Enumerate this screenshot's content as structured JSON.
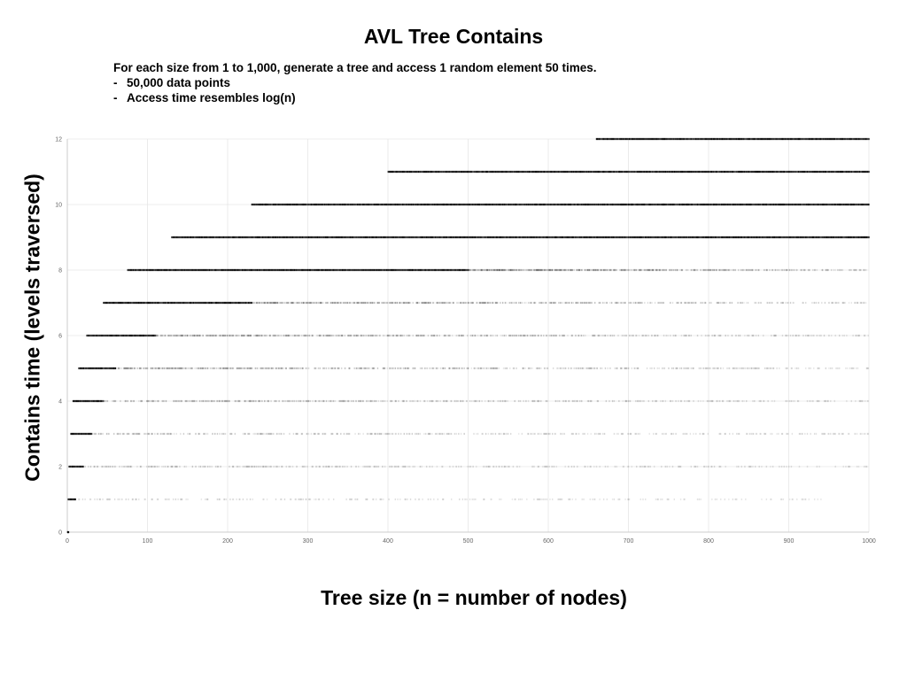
{
  "chart_data": {
    "type": "scatter",
    "title": "AVL Tree Contains",
    "subtitle": "For each size from 1 to 1,000, generate a tree and access 1 random element 50 times.",
    "notes": [
      "50,000 data points",
      "Access time resembles log(n)"
    ],
    "bullet": "-",
    "xlabel": "Tree size (n = number of nodes)",
    "ylabel": "Contains time (levels traversed)",
    "xlim": [
      0,
      1000
    ],
    "ylim": [
      0,
      12
    ],
    "x_ticks": [
      "0",
      "100",
      "200",
      "300",
      "400",
      "500",
      "600",
      "700",
      "800",
      "900",
      "1000"
    ],
    "y_ticks": [
      "0",
      "2",
      "4",
      "6",
      "8",
      "10",
      "12"
    ],
    "grid": true,
    "colors": {
      "points": "#000000",
      "grid": "#e6e6e6",
      "axis": "#cccccc",
      "tick_text": "#666666"
    },
    "bands": [
      {
        "y": 0,
        "x_start": 1,
        "x_end": 1,
        "strong_end": 1,
        "density": 1.0
      },
      {
        "y": 1,
        "x_start": 1,
        "x_end": 940,
        "strong_end": 10,
        "density": 0.18
      },
      {
        "y": 2,
        "x_start": 2,
        "x_end": 1000,
        "strong_end": 20,
        "density": 0.28
      },
      {
        "y": 3,
        "x_start": 4,
        "x_end": 1000,
        "strong_end": 30,
        "density": 0.35
      },
      {
        "y": 4,
        "x_start": 7,
        "x_end": 1000,
        "strong_end": 45,
        "density": 0.45
      },
      {
        "y": 5,
        "x_start": 14,
        "x_end": 1000,
        "strong_end": 60,
        "density": 0.55
      },
      {
        "y": 6,
        "x_start": 24,
        "x_end": 1000,
        "strong_end": 110,
        "density": 0.6
      },
      {
        "y": 7,
        "x_start": 45,
        "x_end": 1000,
        "strong_end": 230,
        "density": 0.7
      },
      {
        "y": 8,
        "x_start": 75,
        "x_end": 1000,
        "strong_end": 500,
        "density": 0.85
      },
      {
        "y": 9,
        "x_start": 130,
        "x_end": 1000,
        "strong_end": 1000,
        "density": 0.9
      },
      {
        "y": 10,
        "x_start": 230,
        "x_end": 1000,
        "strong_end": 1000,
        "density": 0.85
      },
      {
        "y": 11,
        "x_start": 400,
        "x_end": 1000,
        "strong_end": 1000,
        "density": 0.6
      },
      {
        "y": 12,
        "x_start": 660,
        "x_end": 1000,
        "strong_end": 1000,
        "density": 0.15
      }
    ]
  }
}
